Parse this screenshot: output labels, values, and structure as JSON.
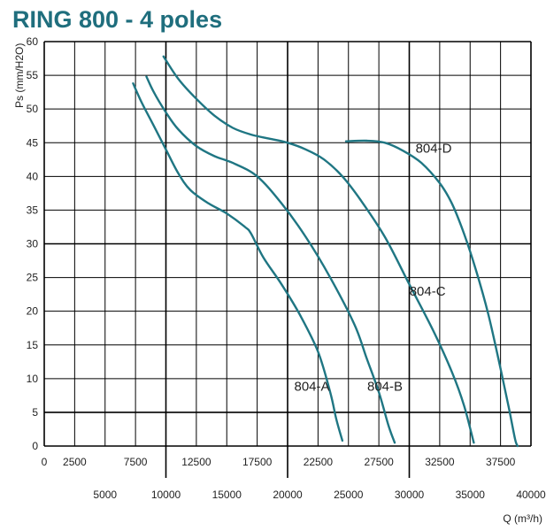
{
  "chart_data": {
    "type": "line",
    "title": "RING 800 - 4 poles",
    "xlabel": "Q (m³/h)",
    "ylabel": "Ps (mm/H2O)",
    "xlim": [
      0,
      40000
    ],
    "ylim": [
      0,
      60
    ],
    "grid": true,
    "x_ticks_top_row": [
      "0",
      "2500",
      "7500",
      "12500",
      "17500",
      "22500",
      "27500",
      "32500",
      "37500"
    ],
    "x_ticks_bottom_row": [
      "5000",
      "10000",
      "15000",
      "20000",
      "25000",
      "30000",
      "35000",
      "40000"
    ],
    "y_ticks": [
      "0",
      "5",
      "10",
      "15",
      "20",
      "25",
      "30",
      "35",
      "40",
      "45",
      "50",
      "55",
      "60"
    ],
    "colors": {
      "curve": "#1f7683",
      "title": "#1f6e7d"
    },
    "series": [
      {
        "name": "804-A",
        "points": [
          [
            7300,
            53.8
          ],
          [
            8000,
            51
          ],
          [
            9000,
            47.5
          ],
          [
            10000,
            44
          ],
          [
            11000,
            40.5
          ],
          [
            12000,
            38
          ],
          [
            13500,
            36
          ],
          [
            15000,
            34.5
          ],
          [
            16500,
            32.5
          ],
          [
            17000,
            31.5
          ],
          [
            18000,
            28
          ],
          [
            19500,
            24
          ],
          [
            21000,
            19.5
          ],
          [
            22500,
            14
          ],
          [
            23500,
            8
          ],
          [
            24000,
            4
          ],
          [
            24500,
            0.8
          ]
        ]
      },
      {
        "name": "804-B",
        "points": [
          [
            8400,
            54.8
          ],
          [
            9000,
            52.5
          ],
          [
            10000,
            49.5
          ],
          [
            11000,
            47
          ],
          [
            12500,
            44.5
          ],
          [
            14000,
            43
          ],
          [
            15500,
            42
          ],
          [
            17500,
            40
          ],
          [
            19500,
            36
          ],
          [
            21500,
            31
          ],
          [
            23500,
            25
          ],
          [
            25500,
            18
          ],
          [
            26500,
            13
          ],
          [
            27500,
            8
          ],
          [
            28300,
            3
          ],
          [
            28800,
            0.5
          ]
        ]
      },
      {
        "name": "804-C",
        "points": [
          [
            9800,
            57.8
          ],
          [
            11000,
            54.5
          ],
          [
            12500,
            51.5
          ],
          [
            14000,
            49
          ],
          [
            15500,
            47.2
          ],
          [
            17000,
            46.2
          ],
          [
            18500,
            45.6
          ],
          [
            20000,
            45
          ],
          [
            21500,
            44
          ],
          [
            23000,
            42.5
          ],
          [
            24500,
            40
          ],
          [
            26000,
            36.5
          ],
          [
            28000,
            31
          ],
          [
            30000,
            24
          ],
          [
            32000,
            17
          ],
          [
            33500,
            11
          ],
          [
            34500,
            6
          ],
          [
            35300,
            0.5
          ]
        ]
      },
      {
        "name": "804-D",
        "points": [
          [
            24800,
            45.2
          ],
          [
            26500,
            45.3
          ],
          [
            28000,
            45
          ],
          [
            29500,
            43.8
          ],
          [
            31000,
            42
          ],
          [
            32500,
            39
          ],
          [
            33500,
            36
          ],
          [
            34500,
            31.5
          ],
          [
            35500,
            26
          ],
          [
            36500,
            19.5
          ],
          [
            37500,
            11.5
          ],
          [
            38200,
            5.5
          ],
          [
            38700,
            1
          ],
          [
            38900,
            0
          ]
        ]
      }
    ]
  }
}
